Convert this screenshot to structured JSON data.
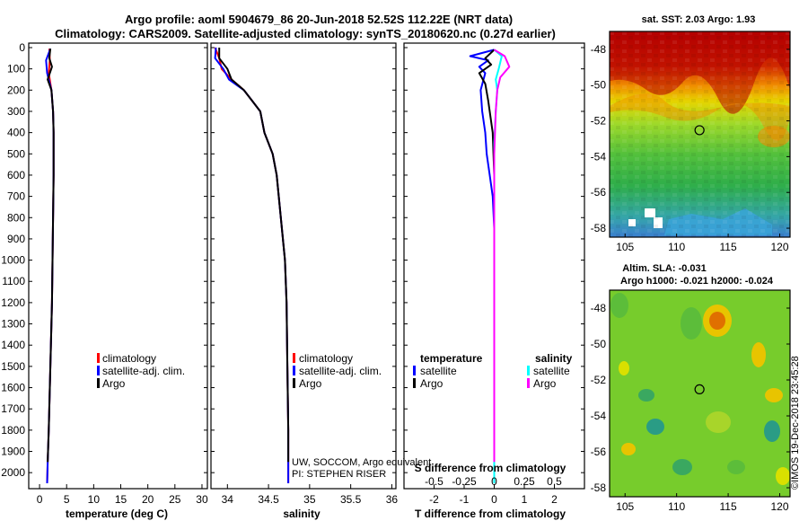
{
  "header": {
    "title_line1": "Argo profile: aoml 5904679_86 20-Jun-2018 52.52S 112.22E (NRT data)",
    "title_line2": "Climatology: CARS2009. Satellite-adjusted climatology: synTS_20180620.nc (0.27d earlier)"
  },
  "colors": {
    "climatology": "#ff0000",
    "satellite": "#0000ff",
    "argo": "#000000",
    "salinity_satellite": "#00ffff",
    "salinity_argo": "#ff00ff"
  },
  "depth_ticks": [
    "0",
    "100",
    "200",
    "300",
    "400",
    "500",
    "600",
    "700",
    "800",
    "900",
    "1000",
    "1100",
    "1200",
    "1300",
    "1400",
    "1500",
    "1600",
    "1700",
    "1800",
    "1900",
    "2000"
  ],
  "chart_data": [
    {
      "type": "line",
      "id": "temperature",
      "xlabel": "temperature (deg C)",
      "ylabel": "depth",
      "xlim": [
        -2,
        31
      ],
      "ylim": [
        2050,
        0
      ],
      "xticks": [
        "0",
        "5",
        "10",
        "15",
        "20",
        "25",
        "30"
      ],
      "legend": [
        "climatology",
        "satellite-adj. clim.",
        "Argo"
      ],
      "series": [
        {
          "name": "climatology",
          "color": "#ff0000",
          "points": [
            [
              1.8,
              5
            ],
            [
              1.9,
              60
            ],
            [
              1.7,
              120
            ],
            [
              2.2,
              200
            ],
            [
              2.5,
              300
            ],
            [
              2.6,
              400
            ],
            [
              2.6,
              600
            ],
            [
              2.5,
              800
            ],
            [
              2.4,
              1000
            ],
            [
              2.3,
              1200
            ],
            [
              2.1,
              1400
            ],
            [
              1.9,
              1600
            ],
            [
              1.7,
              1800
            ],
            [
              1.5,
              1950
            ],
            [
              1.4,
              2050
            ]
          ]
        },
        {
          "name": "satellite-adj. clim.",
          "color": "#0000ff",
          "points": [
            [
              2.0,
              5
            ],
            [
              1.2,
              60
            ],
            [
              1.4,
              120
            ],
            [
              2.2,
              200
            ],
            [
              2.5,
              300
            ],
            [
              2.6,
              400
            ],
            [
              2.6,
              600
            ],
            [
              2.5,
              800
            ],
            [
              2.4,
              1000
            ],
            [
              2.3,
              1200
            ],
            [
              2.1,
              1400
            ],
            [
              1.9,
              1600
            ],
            [
              1.7,
              1800
            ],
            [
              1.5,
              1950
            ],
            [
              1.4,
              2050
            ]
          ]
        },
        {
          "name": "Argo",
          "color": "#000000",
          "points": [
            [
              2.0,
              5
            ],
            [
              1.8,
              50
            ],
            [
              2.3,
              90
            ],
            [
              1.5,
              150
            ],
            [
              2.2,
              200
            ],
            [
              2.5,
              300
            ],
            [
              2.6,
              400
            ],
            [
              2.6,
              600
            ],
            [
              2.5,
              800
            ],
            [
              2.4,
              1000
            ],
            [
              2.3,
              1200
            ],
            [
              2.1,
              1400
            ],
            [
              1.9,
              1600
            ],
            [
              1.7,
              1800
            ],
            [
              1.5,
              1950
            ]
          ]
        }
      ]
    },
    {
      "type": "line",
      "id": "salinity",
      "xlabel": "salinity",
      "ylabel": "depth",
      "xlim": [
        33.8,
        36.05
      ],
      "ylim": [
        2050,
        0
      ],
      "xticks": [
        "34",
        "34.5",
        "35",
        "35.5",
        "36"
      ],
      "legend": [
        "climatology",
        "satellite-adj. clim.",
        "Argo"
      ],
      "annotation": [
        "UW, SOCCOM, Argo equivalent",
        "PI: STEPHEN RISER"
      ],
      "series": [
        {
          "name": "climatology",
          "color": "#ff0000",
          "points": [
            [
              33.85,
              0
            ],
            [
              33.9,
              50
            ],
            [
              33.93,
              100
            ],
            [
              34.05,
              150
            ],
            [
              34.2,
              200
            ],
            [
              34.3,
              250
            ],
            [
              34.4,
              300
            ],
            [
              34.45,
              400
            ],
            [
              34.55,
              500
            ],
            [
              34.6,
              600
            ],
            [
              34.65,
              800
            ],
            [
              34.7,
              1000
            ],
            [
              34.72,
              1200
            ],
            [
              34.73,
              1500
            ],
            [
              34.74,
              1800
            ],
            [
              34.74,
              2050
            ]
          ]
        },
        {
          "name": "satellite-adj. clim.",
          "color": "#0000ff",
          "points": [
            [
              33.86,
              0
            ],
            [
              33.85,
              50
            ],
            [
              33.95,
              100
            ],
            [
              34.02,
              150
            ],
            [
              34.2,
              200
            ],
            [
              34.3,
              250
            ],
            [
              34.4,
              300
            ],
            [
              34.45,
              400
            ],
            [
              34.55,
              500
            ],
            [
              34.6,
              600
            ],
            [
              34.65,
              800
            ],
            [
              34.7,
              1000
            ],
            [
              34.72,
              1200
            ],
            [
              34.73,
              1500
            ],
            [
              34.74,
              1800
            ],
            [
              34.74,
              2050
            ]
          ]
        },
        {
          "name": "Argo",
          "color": "#000000",
          "points": [
            [
              33.9,
              0
            ],
            [
              33.9,
              50
            ],
            [
              34.0,
              100
            ],
            [
              34.05,
              150
            ],
            [
              34.2,
              200
            ],
            [
              34.3,
              250
            ],
            [
              34.4,
              300
            ],
            [
              34.45,
              400
            ],
            [
              34.55,
              500
            ],
            [
              34.6,
              600
            ],
            [
              34.65,
              800
            ],
            [
              34.7,
              1000
            ],
            [
              34.72,
              1200
            ],
            [
              34.73,
              1500
            ],
            [
              34.74,
              1800
            ],
            [
              34.74,
              1950
            ]
          ]
        }
      ]
    },
    {
      "type": "line",
      "id": "difference",
      "xlabel": "T difference from climatology",
      "xlabel_top": "S difference from climatology",
      "ylabel": "depth",
      "xlim": [
        -3,
        3
      ],
      "ylim": [
        2050,
        0
      ],
      "xticks": [
        "-2",
        "-1",
        "0",
        "1",
        "2"
      ],
      "xticks_s": [
        "-0.5",
        "-0.25",
        "0",
        "0.25",
        "0.5"
      ],
      "legend_temperature_title": "temperature",
      "legend_salinity_title": "salinity",
      "legend_temperature": [
        "satellite",
        "Argo"
      ],
      "legend_salinity": [
        "satellite",
        "Argo"
      ],
      "series": [
        {
          "name": "T satellite",
          "color": "#0000ff",
          "points": [
            [
              0,
              10
            ],
            [
              -0.8,
              40
            ],
            [
              -0.2,
              60
            ],
            [
              -0.5,
              90
            ],
            [
              -0.3,
              120
            ],
            [
              -0.45,
              200
            ],
            [
              -0.4,
              300
            ],
            [
              -0.3,
              400
            ],
            [
              -0.25,
              500
            ],
            [
              -0.15,
              600
            ],
            [
              -0.05,
              700
            ],
            [
              0,
              850
            ],
            [
              0,
              2050
            ]
          ]
        },
        {
          "name": "T Argo",
          "color": "#000000",
          "points": [
            [
              0,
              10
            ],
            [
              -0.3,
              50
            ],
            [
              -0.1,
              80
            ],
            [
              -0.5,
              120
            ],
            [
              -0.3,
              170
            ],
            [
              -0.2,
              250
            ],
            [
              -0.05,
              400
            ],
            [
              0,
              600
            ],
            [
              0,
              1950
            ]
          ]
        },
        {
          "name": "S satellite",
          "color": "#00ffff",
          "points": [
            [
              0,
              10
            ],
            [
              0.25,
              40
            ],
            [
              0.2,
              70
            ],
            [
              0.15,
              100
            ],
            [
              0.05,
              150
            ],
            [
              0.1,
              200
            ],
            [
              0.05,
              300
            ],
            [
              0,
              450
            ],
            [
              0,
              2050
            ]
          ]
        },
        {
          "name": "S Argo",
          "color": "#ff00ff",
          "points": [
            [
              0,
              10
            ],
            [
              0.35,
              40
            ],
            [
              0.5,
              90
            ],
            [
              0.2,
              140
            ],
            [
              0.1,
              200
            ],
            [
              0.05,
              300
            ],
            [
              0,
              500
            ],
            [
              0,
              1950
            ]
          ]
        }
      ]
    },
    {
      "type": "heatmap",
      "id": "sst-map",
      "title": "sat. SST: 2.03 Argo: 1.93",
      "xlim": [
        103.5,
        121
      ],
      "ylim": [
        -58.5,
        -47
      ],
      "xticks": [
        "105",
        "110",
        "115",
        "120"
      ],
      "yticks": [
        "-48",
        "-50",
        "-52",
        "-54",
        "-56",
        "-58"
      ],
      "marker": [
        112.22,
        -52.52
      ]
    },
    {
      "type": "heatmap",
      "id": "sla-map",
      "title": "Altim. SLA: -0.031",
      "subtitle": "Argo h1000: -0.021 h2000: -0.024",
      "xlim": [
        103.5,
        121
      ],
      "ylim": [
        -58.5,
        -47
      ],
      "xticks": [
        "105",
        "110",
        "115",
        "120"
      ],
      "yticks": [
        "-48",
        "-50",
        "-52",
        "-54",
        "-56",
        "-58"
      ],
      "marker": [
        112.22,
        -52.52
      ]
    }
  ],
  "footer": {
    "stamp": "©IMOS 19-Dec-2018 23:45:28"
  }
}
